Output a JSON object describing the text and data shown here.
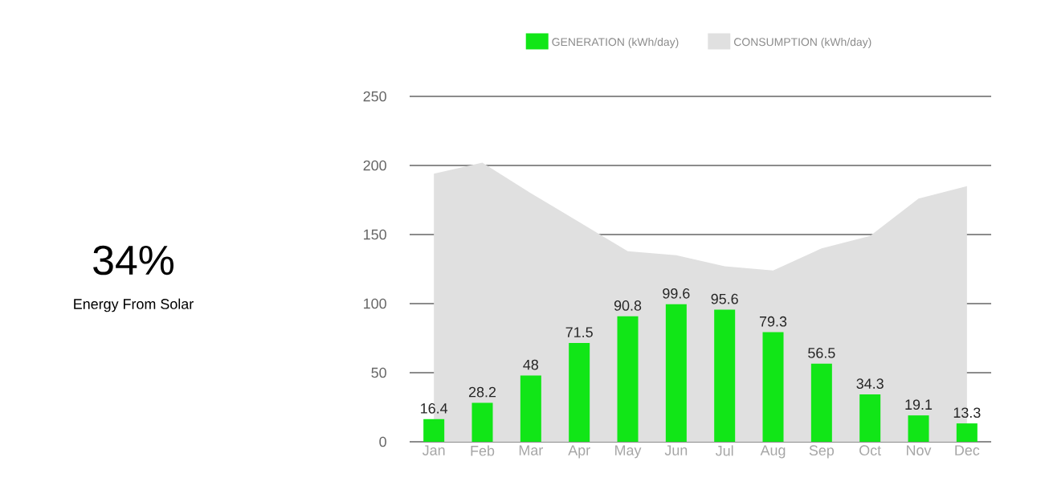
{
  "chart_data": {
    "type": "bar",
    "categories": [
      "Jan",
      "Feb",
      "Mar",
      "Apr",
      "May",
      "Jun",
      "Jul",
      "Aug",
      "Sep",
      "Oct",
      "Nov",
      "Dec"
    ],
    "series": [
      {
        "name": "GENERATION (kWh/day)",
        "color": "#11e617",
        "values": [
          16.4,
          28.2,
          48,
          71.5,
          90.8,
          99.6,
          95.6,
          79.3,
          56.5,
          34.3,
          19.1,
          13.3
        ],
        "data_labels": true
      },
      {
        "name": "CONSUMPTION (kWh/day)",
        "type": "area",
        "color": "#e0e0e0",
        "values": [
          194,
          202,
          180,
          159,
          138,
          135,
          127,
          124,
          140,
          149,
          176,
          185
        ]
      }
    ],
    "ylim": [
      0,
      250
    ],
    "yticks": [
      0,
      50,
      100,
      150,
      200,
      250
    ],
    "grid": "y",
    "legend": "top",
    "annotations": [
      "34%",
      "Energy From Solar"
    ]
  }
}
